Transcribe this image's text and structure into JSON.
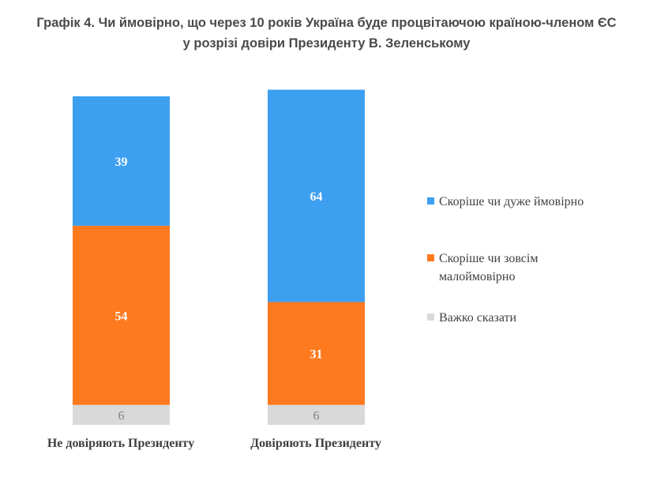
{
  "title": {
    "line1": "Графік 4. Чи ймовірно, що через 10 років Україна буде процвітаючою країною-членом ЄС",
    "line2": "у розрізі довіри Президенту В. Зеленському"
  },
  "colors": {
    "likely": "#3d9ff0",
    "unlikely": "#ff7a1f",
    "hard": "#d9d9d9"
  },
  "chart_data": {
    "type": "bar",
    "stacked": true,
    "categories": [
      "Не довіряють Президенту",
      "Довіряють Президенту"
    ],
    "series": [
      {
        "name": "Важко сказати",
        "values": [
          6,
          6
        ]
      },
      {
        "name": "Скоріше чи зовсім малоймовірно",
        "values": [
          54,
          31
        ]
      },
      {
        "name": "Скоріше чи дуже ймовірно",
        "values": [
          39,
          64
        ]
      }
    ],
    "legend": {
      "placement": "right",
      "entries": [
        {
          "lines": [
            "Скоріше чи дуже ймовірно"
          ],
          "series": "Скоріше чи дуже ймовірно"
        },
        {
          "lines": [
            "Скоріше чи зовсім",
            "малоймовірно"
          ],
          "series": "Скоріше чи зовсім малоймовірно"
        },
        {
          "lines": [
            "Важко сказати"
          ],
          "series": "Важко сказати"
        }
      ]
    },
    "ylim": [
      0,
      99
    ],
    "grid": false
  }
}
